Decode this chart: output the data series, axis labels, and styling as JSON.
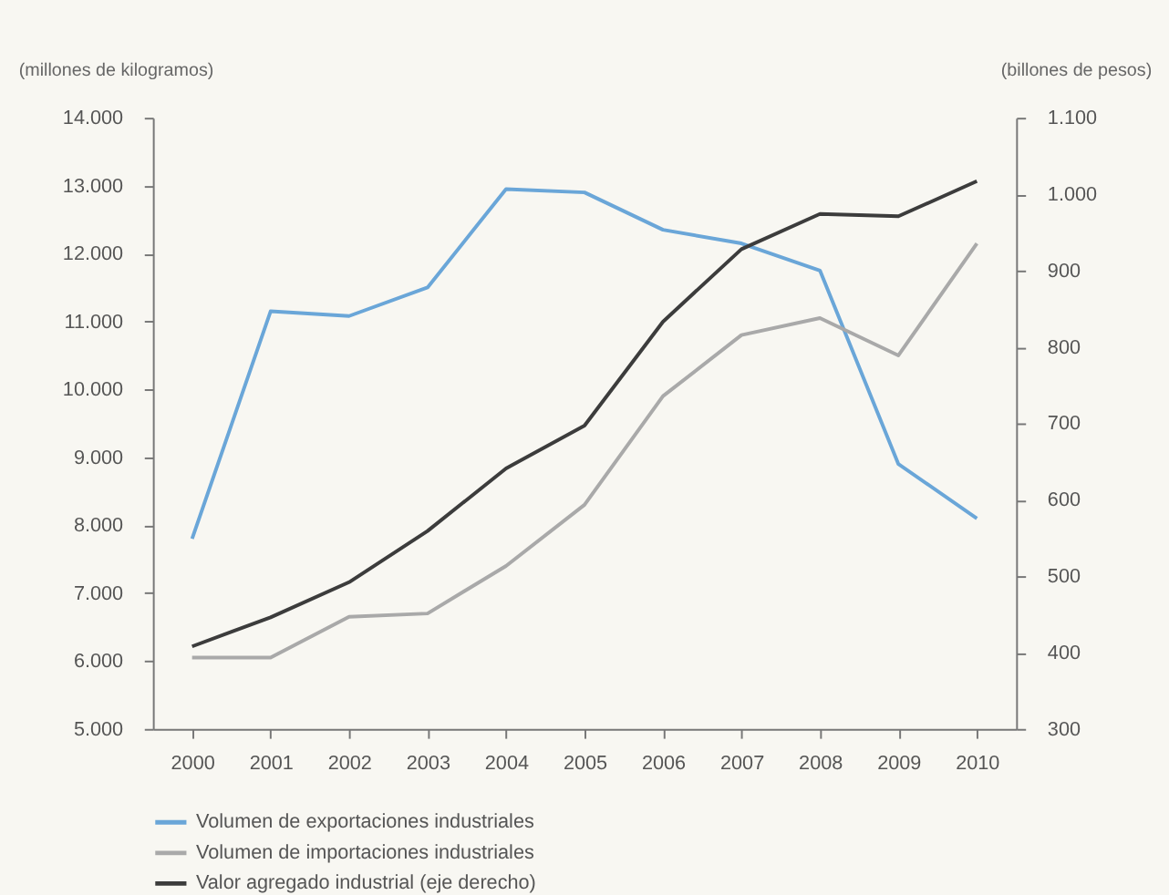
{
  "chart_data": {
    "type": "line",
    "ylabel": "(millones de kilogramos)",
    "y2label": "(billones de pesos)",
    "categories": [
      "2000",
      "2001",
      "2002",
      "2003",
      "2004",
      "2005",
      "2006",
      "2007",
      "2008",
      "2009",
      "2010"
    ],
    "series": [
      {
        "name": "Volumen de exportaciones industriales",
        "color": "#6aa6d8",
        "values": [
          7800,
          11150,
          11080,
          11500,
          12950,
          12900,
          12350,
          12150,
          11750,
          8900,
          8100
        ]
      },
      {
        "name": "Volumen de importaciones industriales",
        "color": "#a9a9a9",
        "values": [
          6050,
          6050,
          6650,
          6700,
          7400,
          8300,
          9900,
          10800,
          11050,
          10500,
          12150
        ]
      },
      {
        "name": "Valor agregado industrial (eje derecho)",
        "color": "#3c3c3c",
        "axis": "y2",
        "values": [
          408,
          446,
          492,
          559,
          641,
          697,
          833,
          928,
          974,
          971,
          1017
        ]
      }
    ],
    "ylim": [
      5000,
      14000
    ],
    "yticks": [
      {
        "value": 5000,
        "label": "5.000"
      },
      {
        "value": 6000,
        "label": "6.000"
      },
      {
        "value": 7000,
        "label": "7.000"
      },
      {
        "value": 8000,
        "label": "8.000"
      },
      {
        "value": 9000,
        "label": "9.000"
      },
      {
        "value": 10000,
        "label": "10.000"
      },
      {
        "value": 11000,
        "label": "11.000"
      },
      {
        "value": 12000,
        "label": "12.000"
      },
      {
        "value": 13000,
        "label": "13.000"
      },
      {
        "value": 14000,
        "label": "14.000"
      }
    ],
    "y2lim": [
      300,
      1100
    ],
    "y2ticks": [
      300,
      400,
      500,
      600,
      700,
      800,
      900,
      {
        "value": 1000,
        "label": "1.000"
      },
      {
        "value": 1100,
        "label": "1.100"
      }
    ],
    "grid": false,
    "legend": "bottom",
    "marker": "none",
    "line_style": "solid"
  }
}
